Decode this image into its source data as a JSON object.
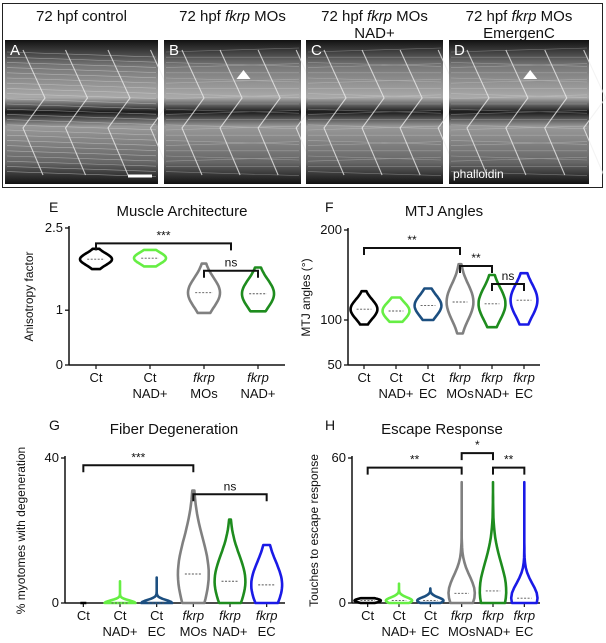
{
  "colors": {
    "ct": "#000000",
    "ct_nad": "#66ee44",
    "ct_ec": "#1c4f80",
    "fkrp_mo": "#808080",
    "fkrp_nad": "#1e8c1e",
    "fkrp_ec": "#1a1ae6"
  },
  "micrographs": [
    {
      "letter": "A",
      "title_parts": [
        {
          "t": "72 hpf control",
          "i": false
        }
      ],
      "title_line2": "",
      "arrowhead": false,
      "stain_label": ""
    },
    {
      "letter": "B",
      "title_parts": [
        {
          "t": "72 hpf ",
          "i": false
        },
        {
          "t": "fkrp",
          "i": true
        },
        {
          "t": " MOs",
          "i": false
        }
      ],
      "title_line2": "",
      "arrowhead": true,
      "stain_label": ""
    },
    {
      "letter": "C",
      "title_parts": [
        {
          "t": "72 hpf ",
          "i": false
        },
        {
          "t": "fkrp",
          "i": true
        },
        {
          "t": " MOs",
          "i": false
        }
      ],
      "title_line2": "NAD+",
      "arrowhead": false,
      "stain_label": ""
    },
    {
      "letter": "D",
      "title_parts": [
        {
          "t": "72 hpf ",
          "i": false
        },
        {
          "t": "fkrp",
          "i": true
        },
        {
          "t": " MOs",
          "i": false
        }
      ],
      "title_line2": "EmergenC",
      "arrowhead": true,
      "stain_label": "phalloidin"
    }
  ],
  "chart_data": [
    {
      "letter": "E",
      "type": "violin",
      "title": "Muscle Architecture",
      "ylabel": "Anisotropy factor",
      "ylim": [
        0,
        2.5
      ],
      "ytick_labels": [
        "0",
        "1",
        "2.5"
      ],
      "ytick_values": [
        0,
        1,
        2.5
      ],
      "categories": [
        [
          "Ct",
          ""
        ],
        [
          "Ct",
          "NAD+"
        ],
        [
          "fkrp",
          "MOs"
        ],
        [
          "fkrp",
          "NAD+"
        ]
      ],
      "italic_first_line": [
        false,
        false,
        true,
        true
      ],
      "groups": [
        {
          "color_key": "ct",
          "lo": 1.75,
          "hi": 2.12,
          "median": 1.93,
          "q1": 1.86,
          "q3": 1.98
        },
        {
          "color_key": "ct_nad",
          "lo": 1.8,
          "hi": 2.1,
          "median": 1.95,
          "q1": 1.88,
          "q3": 2.0
        },
        {
          "color_key": "fkrp_mo",
          "lo": 0.95,
          "hi": 1.85,
          "median": 1.32,
          "q1": 1.18,
          "q3": 1.48
        },
        {
          "color_key": "fkrp_nad",
          "lo": 0.98,
          "hi": 1.78,
          "median": 1.3,
          "q1": 1.16,
          "q3": 1.45
        }
      ],
      "significance": [
        {
          "from": 0,
          "to": 2,
          "to_span": [
            2,
            3
          ],
          "y": 2.22,
          "label": "***"
        },
        {
          "from": 2,
          "to": 3,
          "y": 1.72,
          "label": "ns"
        }
      ]
    },
    {
      "letter": "F",
      "type": "violin",
      "title": "MTJ Angles",
      "ylabel": "MTJ angles (°)",
      "ylim": [
        50,
        200
      ],
      "ytick_labels": [
        "50",
        "100",
        "200"
      ],
      "ytick_values": [
        50,
        100,
        200
      ],
      "categories": [
        [
          "Ct",
          ""
        ],
        [
          "Ct",
          "NAD+"
        ],
        [
          "Ct",
          "EC"
        ],
        [
          "fkrp",
          "MOs"
        ],
        [
          "fkrp",
          "NAD+"
        ],
        [
          "fkrp",
          "EC"
        ]
      ],
      "italic_first_line": [
        false,
        false,
        false,
        true,
        true,
        true
      ],
      "groups": [
        {
          "color_key": "ct",
          "lo": 95,
          "hi": 132,
          "median": 112,
          "q1": 106,
          "q3": 118
        },
        {
          "color_key": "ct_nad",
          "lo": 98,
          "hi": 125,
          "median": 110,
          "q1": 105,
          "q3": 116
        },
        {
          "color_key": "ct_ec",
          "lo": 100,
          "hi": 135,
          "median": 116,
          "q1": 110,
          "q3": 123
        },
        {
          "color_key": "fkrp_mo",
          "lo": 85,
          "hi": 162,
          "median": 120,
          "q1": 110,
          "q3": 132
        },
        {
          "color_key": "fkrp_nad",
          "lo": 92,
          "hi": 150,
          "median": 118,
          "q1": 108,
          "q3": 128
        },
        {
          "color_key": "fkrp_ec",
          "lo": 95,
          "hi": 152,
          "median": 122,
          "q1": 112,
          "q3": 132
        }
      ],
      "significance": [
        {
          "from": 0,
          "to": 3,
          "y": 180,
          "label": "**"
        },
        {
          "from": 3,
          "to": 4,
          "y": 160,
          "label": "**"
        },
        {
          "from": 4,
          "to": 5,
          "y": 140,
          "label": "ns"
        }
      ]
    },
    {
      "letter": "G",
      "type": "violin",
      "title": "Fiber Degeneration",
      "ylabel": "% myotomes with degeneration",
      "ylim": [
        0,
        40
      ],
      "ytick_labels": [
        "0",
        "40"
      ],
      "ytick_values": [
        0,
        40
      ],
      "categories": [
        [
          "Ct",
          ""
        ],
        [
          "Ct",
          "NAD+"
        ],
        [
          "Ct",
          "EC"
        ],
        [
          "fkrp",
          "MOs"
        ],
        [
          "fkrp",
          "NAD+"
        ],
        [
          "fkrp",
          "EC"
        ]
      ],
      "italic_first_line": [
        false,
        false,
        false,
        true,
        true,
        true
      ],
      "groups": [
        {
          "color_key": "ct",
          "lo": 0,
          "hi": 0,
          "median": 0,
          "q1": 0,
          "q3": 0
        },
        {
          "color_key": "ct_nad",
          "lo": 0,
          "hi": 6,
          "median": 0,
          "q1": 0,
          "q3": 0
        },
        {
          "color_key": "ct_ec",
          "lo": 0,
          "hi": 7,
          "median": 0,
          "q1": 0,
          "q3": 0
        },
        {
          "color_key": "fkrp_mo",
          "lo": 0,
          "hi": 31,
          "median": 8,
          "q1": 3,
          "q3": 14
        },
        {
          "color_key": "fkrp_nad",
          "lo": 0,
          "hi": 23,
          "median": 6,
          "q1": 2,
          "q3": 10
        },
        {
          "color_key": "fkrp_ec",
          "lo": 0,
          "hi": 16,
          "median": 5,
          "q1": 2,
          "q3": 9
        }
      ],
      "significance": [
        {
          "from": 0,
          "to": 3,
          "y": 38,
          "label": "***"
        },
        {
          "from": 3,
          "to": 5,
          "y": 30,
          "label": "ns"
        }
      ]
    },
    {
      "letter": "H",
      "type": "violin",
      "title": "Escape Response",
      "ylabel": "Touches to escape response",
      "ylim": [
        0,
        60
      ],
      "ytick_labels": [
        "0",
        "60"
      ],
      "ytick_values": [
        0,
        60
      ],
      "categories": [
        [
          "Ct",
          ""
        ],
        [
          "Ct",
          "NAD+"
        ],
        [
          "Ct",
          "EC"
        ],
        [
          "fkrp",
          "MOs"
        ],
        [
          "fkrp",
          "NAD+"
        ],
        [
          "fkrp",
          "EC"
        ]
      ],
      "italic_first_line": [
        false,
        false,
        false,
        true,
        true,
        true
      ],
      "groups": [
        {
          "color_key": "ct",
          "lo": 0,
          "hi": 2,
          "median": 1,
          "q1": 0.5,
          "q3": 1.5
        },
        {
          "color_key": "ct_nad",
          "lo": 0,
          "hi": 8,
          "median": 1,
          "q1": 0.5,
          "q3": 2
        },
        {
          "color_key": "ct_ec",
          "lo": 0,
          "hi": 6,
          "median": 1,
          "q1": 0.5,
          "q3": 2
        },
        {
          "color_key": "fkrp_mo",
          "lo": 0,
          "hi": 50,
          "median": 4,
          "q1": 2,
          "q3": 10
        },
        {
          "color_key": "fkrp_nad",
          "lo": 0,
          "hi": 50,
          "median": 5,
          "q1": 2,
          "q3": 15
        },
        {
          "color_key": "fkrp_ec",
          "lo": 0,
          "hi": 50,
          "median": 2,
          "q1": 1,
          "q3": 4
        }
      ],
      "significance": [
        {
          "from": 0,
          "to": 3,
          "y": 56,
          "label": "**"
        },
        {
          "from": 3,
          "to": 4,
          "y": 62,
          "label": "*"
        },
        {
          "from": 4,
          "to": 5,
          "y": 56,
          "label": "**"
        }
      ]
    }
  ]
}
